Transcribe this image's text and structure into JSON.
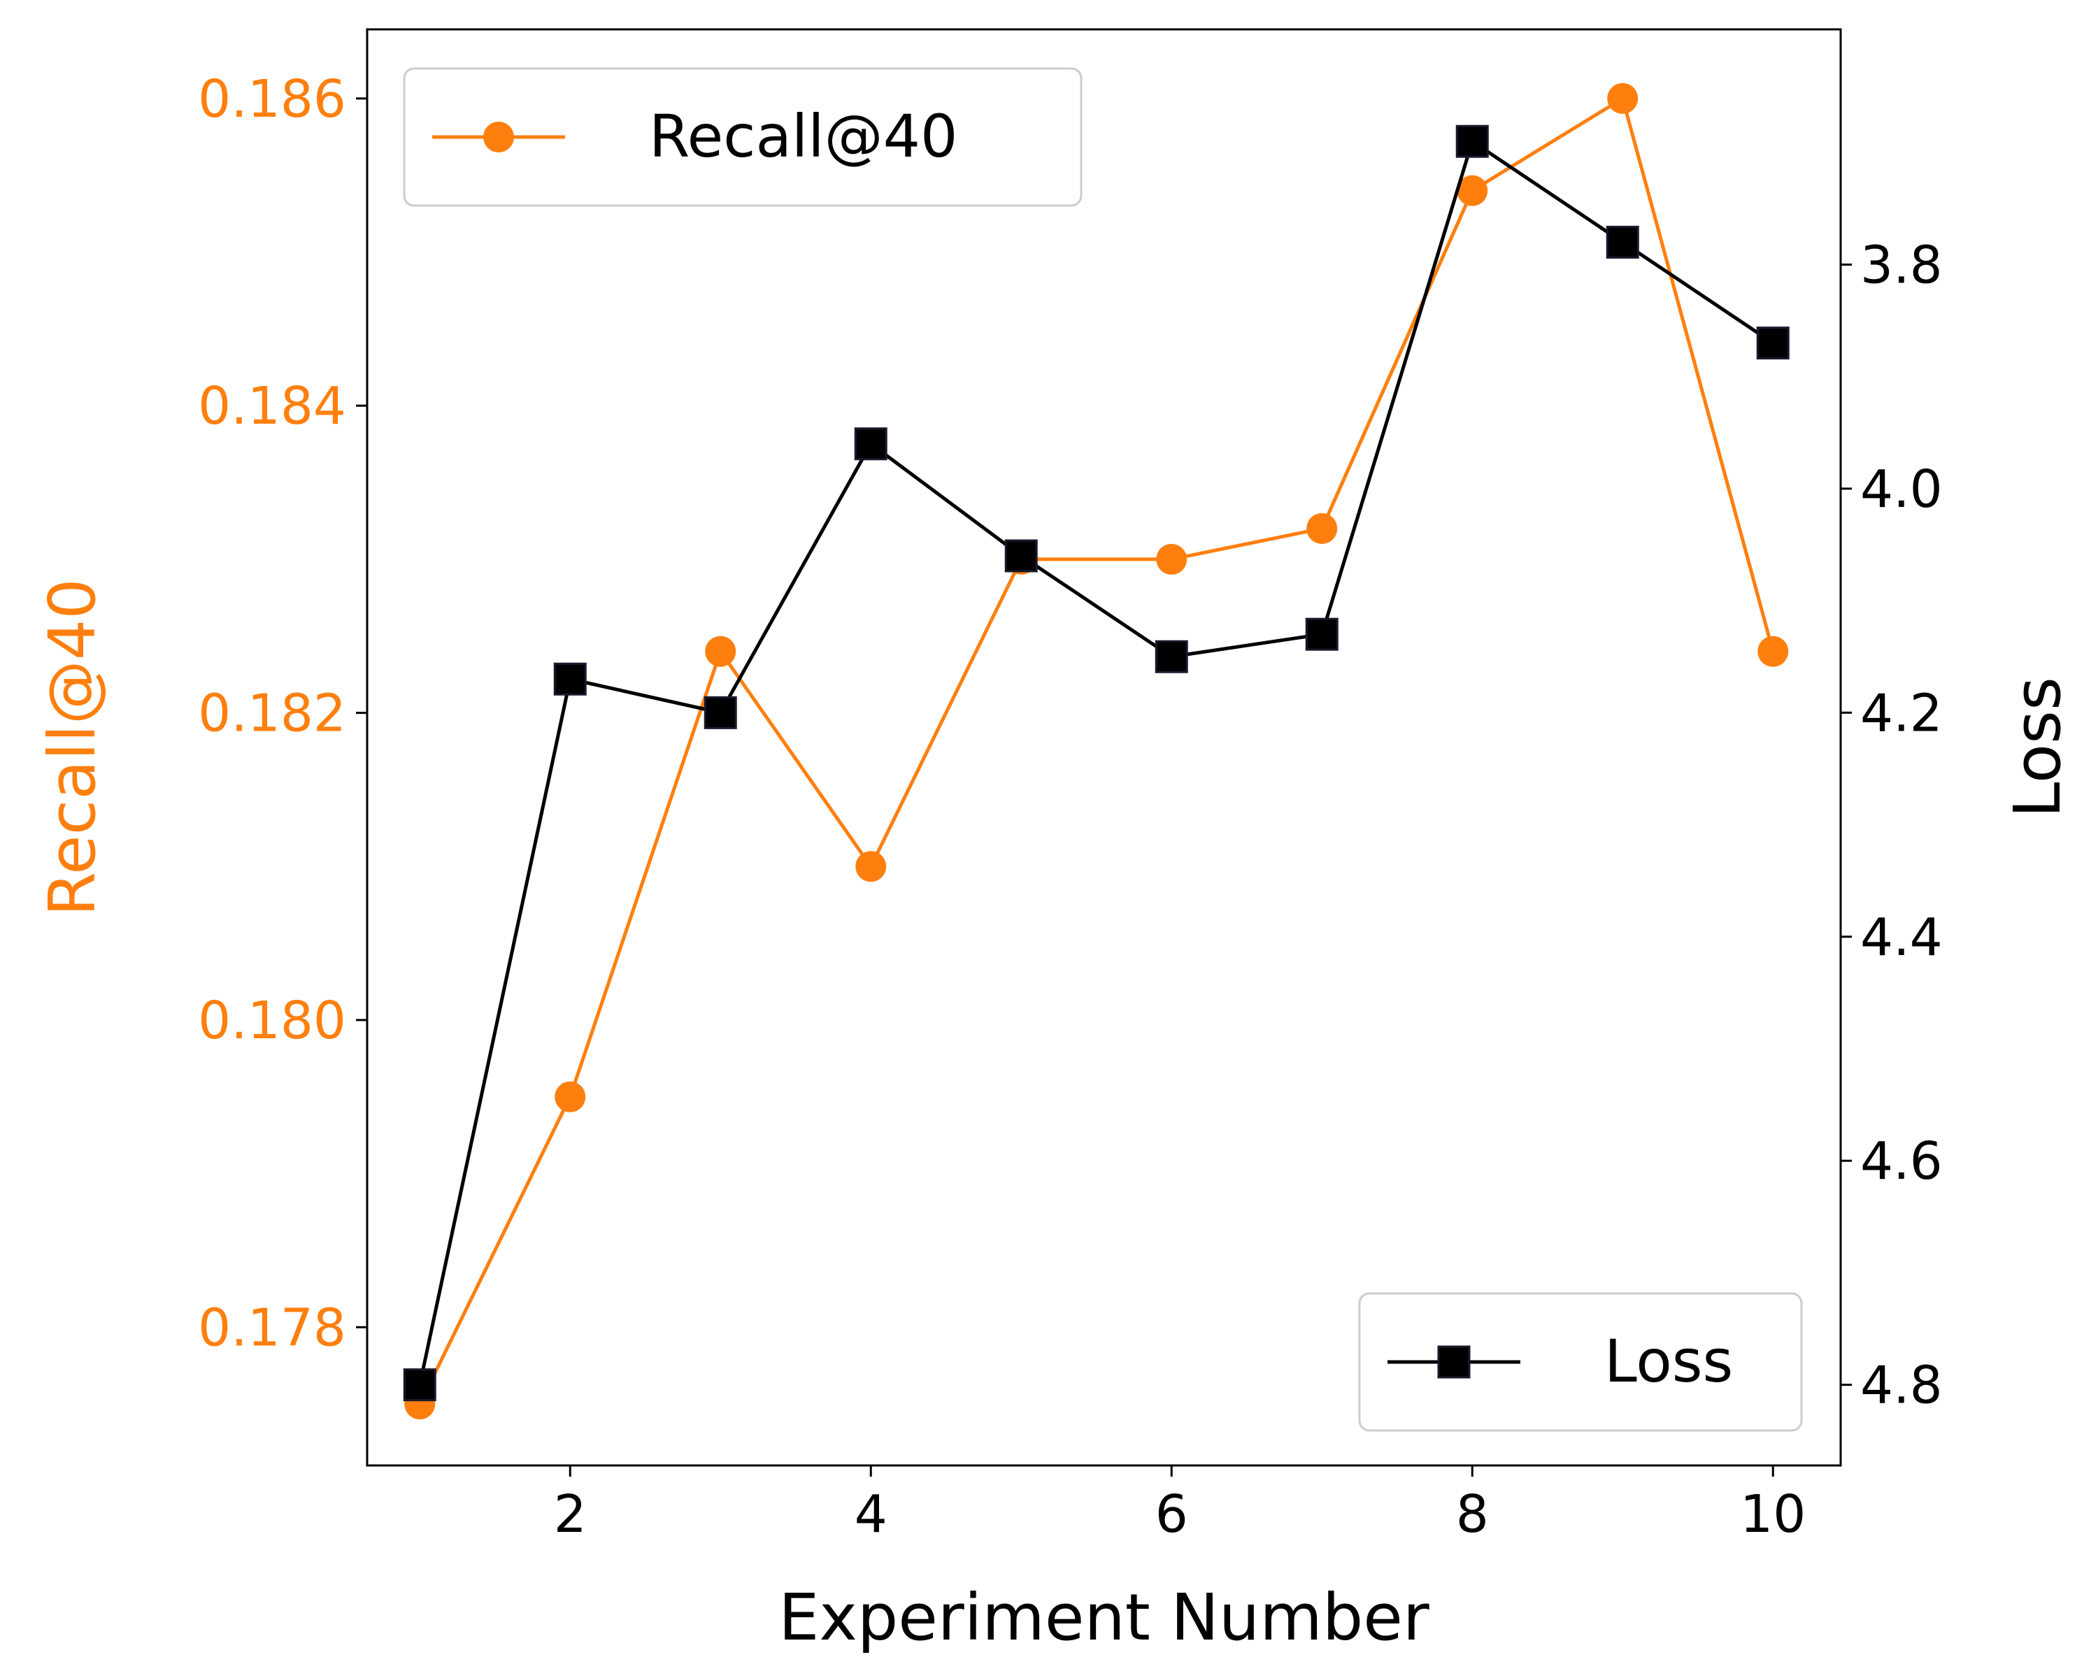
{
  "chart_data": {
    "type": "line",
    "title": "",
    "xlabel": "Experiment Number",
    "x": [
      1,
      2,
      3,
      4,
      5,
      6,
      7,
      8,
      9,
      10
    ],
    "xlim": [
      0.65,
      10.45
    ],
    "xticks": [
      "2",
      "4",
      "6",
      "8",
      "10"
    ],
    "xtick_values": [
      2,
      4,
      6,
      8,
      10
    ],
    "grid": false,
    "series": [
      {
        "name": "Recall@40",
        "axis": "left",
        "marker": "circle",
        "color": "#ff7f0e",
        "values": [
          0.1775,
          0.1795,
          0.1824,
          0.181,
          0.183,
          0.183,
          0.1832,
          0.1854,
          0.186,
          0.1824
        ]
      },
      {
        "name": "Loss",
        "axis": "right",
        "marker": "square",
        "color": "#000000",
        "values": [
          4.8,
          4.17,
          4.2,
          3.96,
          4.06,
          4.15,
          4.13,
          3.69,
          3.78,
          3.87
        ]
      }
    ],
    "y_left": {
      "label": "Recall@40",
      "color": "#ff7f0e",
      "ylim": [
        0.1771,
        0.18645
      ],
      "ticks": [
        "0.178",
        "0.180",
        "0.182",
        "0.184",
        "0.186"
      ],
      "tick_values": [
        0.178,
        0.18,
        0.182,
        0.184,
        0.186
      ]
    },
    "y_right": {
      "label": "Loss",
      "color": "#000000",
      "ylim": [
        4.872,
        3.59
      ],
      "ticks": [
        "3.8",
        "4.0",
        "4.2",
        "4.4",
        "4.6",
        "4.8"
      ],
      "tick_values": [
        3.8,
        4.0,
        4.2,
        4.4,
        4.6,
        4.8
      ]
    },
    "legends": [
      {
        "series": "Recall@40",
        "location": "upper-left"
      },
      {
        "series": "Loss",
        "location": "lower-right"
      }
    ]
  }
}
